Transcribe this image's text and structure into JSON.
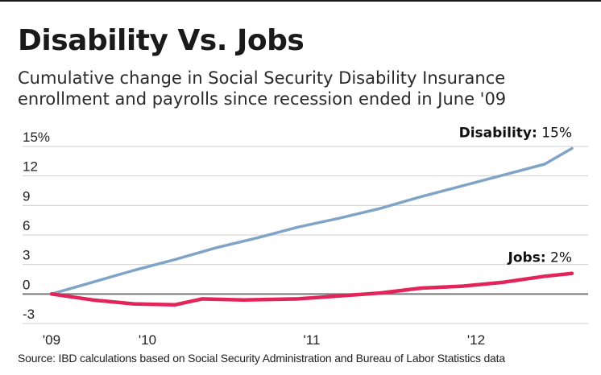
{
  "chart_data": {
    "type": "line",
    "title": "Disability Vs. Jobs",
    "subtitle": "Cumulative change in Social Security Disability Insurance enrollment and payrolls since recession ended in June '09",
    "source": "Source: IBD calculations based on Social Security Administration and Bureau of Labor Statistics data",
    "ylim": [
      -3,
      15
    ],
    "y_ticks": [
      {
        "value": 15,
        "label": "15%"
      },
      {
        "value": 12,
        "label": "12"
      },
      {
        "value": 9,
        "label": "9"
      },
      {
        "value": 6,
        "label": "6"
      },
      {
        "value": 3,
        "label": "3"
      },
      {
        "value": 0,
        "label": "0"
      },
      {
        "value": -3,
        "label": "-3"
      }
    ],
    "x_range": [
      "2009-06",
      "2012-08"
    ],
    "x_ticks": [
      {
        "value": "2009-06",
        "label": "'09"
      },
      {
        "value": "2010-01",
        "label": "'10"
      },
      {
        "value": "2011-01",
        "label": "'11"
      },
      {
        "value": "2012-01",
        "label": "'12"
      }
    ],
    "grid": true,
    "series": [
      {
        "name": "Disability",
        "end_label": "15%",
        "color": "#7fa4c8",
        "points": [
          [
            "2009-06",
            0.0
          ],
          [
            "2009-09",
            1.2
          ],
          [
            "2009-12",
            2.4
          ],
          [
            "2010-03",
            3.5
          ],
          [
            "2010-06",
            4.7
          ],
          [
            "2010-09",
            5.7
          ],
          [
            "2010-12",
            6.8
          ],
          [
            "2011-03",
            7.7
          ],
          [
            "2011-06",
            8.7
          ],
          [
            "2011-09",
            9.9
          ],
          [
            "2011-12",
            11.0
          ],
          [
            "2012-03",
            12.1
          ],
          [
            "2012-06",
            13.2
          ],
          [
            "2012-08",
            14.8
          ]
        ]
      },
      {
        "name": "Jobs",
        "end_label": "2%",
        "color": "#e3245a",
        "points": [
          [
            "2009-06",
            0.0
          ],
          [
            "2009-09",
            -0.6
          ],
          [
            "2009-12",
            -1.0
          ],
          [
            "2010-03",
            -1.1
          ],
          [
            "2010-05",
            -0.5
          ],
          [
            "2010-08",
            -0.6
          ],
          [
            "2010-12",
            -0.5
          ],
          [
            "2011-03",
            -0.2
          ],
          [
            "2011-06",
            0.1
          ],
          [
            "2011-09",
            0.6
          ],
          [
            "2011-12",
            0.8
          ],
          [
            "2012-03",
            1.2
          ],
          [
            "2012-06",
            1.8
          ],
          [
            "2012-08",
            2.1
          ]
        ]
      }
    ]
  }
}
